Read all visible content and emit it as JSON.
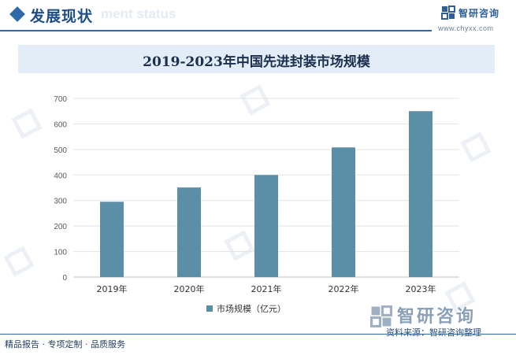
{
  "header": {
    "section_title": "发展现状",
    "ghost_text": "ment status",
    "brand_name": "智研咨询",
    "brand_url": "www.chyxx.com"
  },
  "chart_data": {
    "type": "bar",
    "title": "2019-2023年中国先进封装市场规模",
    "categories": [
      "2019年",
      "2020年",
      "2021年",
      "2022年",
      "2023年"
    ],
    "series": [
      {
        "name": "市场规模（亿元）",
        "values": [
          295,
          351,
          400,
          508,
          650
        ],
        "color": "#5b8fa8"
      }
    ],
    "ylim": [
      0,
      700
    ],
    "yticks": [
      "0",
      "100",
      "200",
      "300",
      "400",
      "500",
      "600",
      "700"
    ],
    "grid": true,
    "legend": "bottom"
  },
  "source": {
    "label": "资料来源：智研咨询整理",
    "brand_name": "智研咨询"
  },
  "footer": {
    "text": "精品报告 · 专项定制 · 品质服务"
  }
}
